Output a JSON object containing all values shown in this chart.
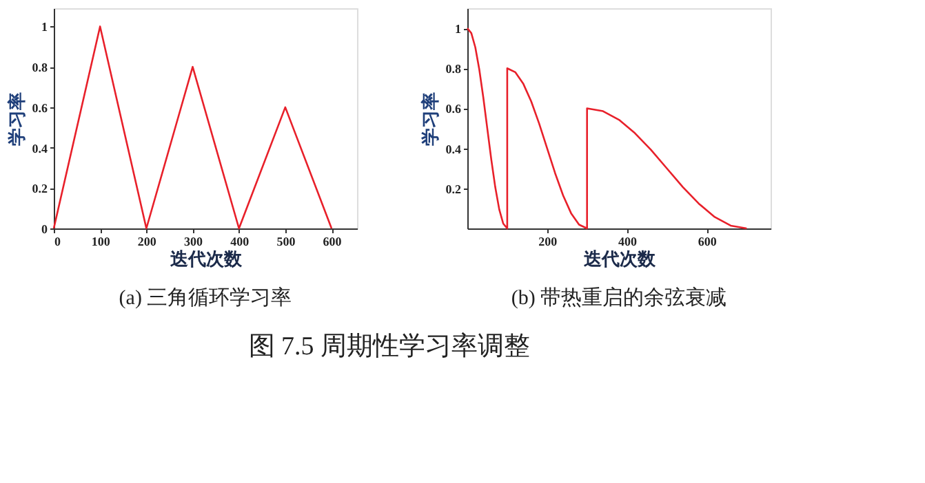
{
  "chart_data": [
    {
      "type": "line",
      "title": "(a) 三角循环学习率",
      "xlabel": "迭代次数",
      "ylabel": "学习率",
      "xlim": [
        0,
        655
      ],
      "ylim": [
        0,
        1.09
      ],
      "xticks": [
        0,
        100,
        200,
        300,
        400,
        500,
        600
      ],
      "yticks": [
        0,
        0.2,
        0.4,
        0.6,
        0.8,
        1
      ],
      "grid": false,
      "marker": "none",
      "line_style": "solid",
      "series": [
        {
          "color": "#e8202a",
          "x": [
            0,
            100,
            200,
            300,
            400,
            500,
            600
          ],
          "values": [
            0,
            1,
            0,
            0.8,
            0,
            0.6,
            0
          ]
        }
      ]
    },
    {
      "type": "line",
      "title": "(b) 带热重启的余弦衰减",
      "xlabel": "迭代次数",
      "ylabel": "学习率",
      "xlim": [
        0,
        760
      ],
      "ylim": [
        0,
        1.1
      ],
      "xticks": [
        200,
        400,
        600
      ],
      "yticks": [
        0.2,
        0.4,
        0.6,
        0.8,
        1
      ],
      "grid": false,
      "marker": "none",
      "line_style": "solid",
      "annotations": [
        "图 7.5 周期性学习率调整"
      ],
      "series": [
        {
          "color": "#e8202a",
          "x": [
            0,
            10,
            20,
            30,
            40,
            50,
            60,
            70,
            80,
            90,
            100,
            100,
            120,
            140,
            160,
            180,
            200,
            220,
            240,
            260,
            280,
            300,
            300,
            340,
            380,
            420,
            460,
            500,
            540,
            580,
            620,
            660,
            700
          ],
          "values": [
            1,
            0.976,
            0.905,
            0.794,
            0.655,
            0.5,
            0.345,
            0.206,
            0.095,
            0.024,
            0,
            0.8,
            0.781,
            0.724,
            0.635,
            0.524,
            0.4,
            0.276,
            0.165,
            0.076,
            0.019,
            0,
            0.6,
            0.586,
            0.543,
            0.476,
            0.393,
            0.3,
            0.207,
            0.124,
            0.057,
            0.014,
            0
          ]
        }
      ]
    }
  ]
}
